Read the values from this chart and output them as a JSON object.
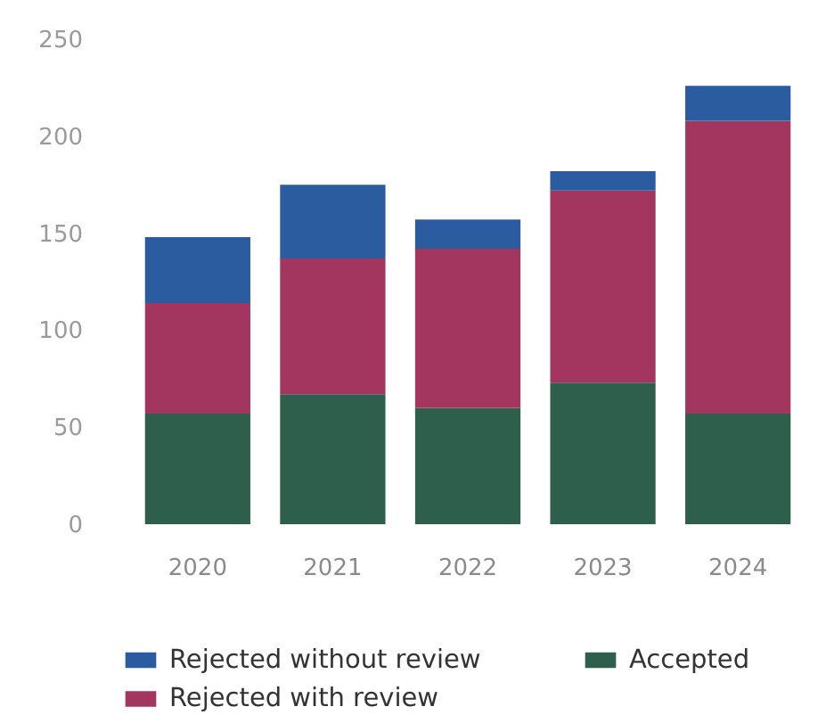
{
  "chart_data": {
    "type": "bar",
    "categories": [
      "2020",
      "2021",
      "2022",
      "2023",
      "2024"
    ],
    "stacked": true,
    "ylim": [
      0,
      250
    ],
    "yticks": [
      0,
      50,
      100,
      150,
      200,
      250
    ],
    "legend": "bottom",
    "series": [
      {
        "name": "Accepted",
        "color": "#2e5f4c",
        "values": [
          57,
          67,
          60,
          73,
          57
        ]
      },
      {
        "name": "Rejected with review",
        "color": "#a3365f",
        "values": [
          57,
          70,
          82,
          99,
          151
        ]
      },
      {
        "name": "Rejected without review",
        "color": "#2b5c9f",
        "values": [
          34,
          38,
          15,
          10,
          18
        ]
      }
    ]
  }
}
